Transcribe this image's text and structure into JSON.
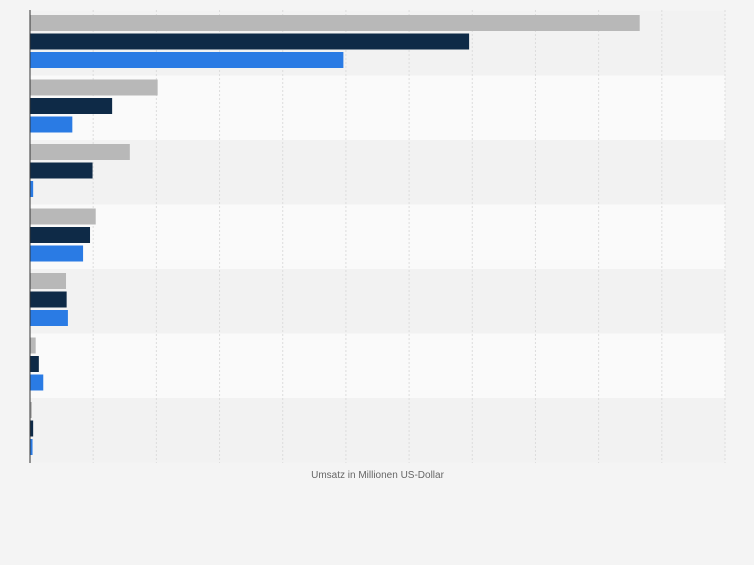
{
  "chart_data": {
    "type": "bar",
    "orientation": "horizontal",
    "title": "",
    "xlabel": "Umsatz in Millionen US-Dollar",
    "ylabel": "",
    "categories": [
      "",
      "",
      "",
      "",
      "",
      "",
      ""
    ],
    "series": [
      {
        "values": [
          9.65,
          2.02,
          1.58,
          1.04,
          0.57,
          0.09,
          0.03
        ],
        "color": "#b8b8b8"
      },
      {
        "values": [
          6.95,
          1.3,
          0.99,
          0.95,
          0.58,
          0.14,
          0.05
        ],
        "color": "#0e2a47"
      },
      {
        "values": [
          4.96,
          0.67,
          0.05,
          0.84,
          0.6,
          0.21,
          0.04
        ],
        "color": "#2a7be4"
      }
    ],
    "xlim": [
      0,
      11
    ],
    "grid": true,
    "legend": "none",
    "colors": {
      "background": "#f4f4f4",
      "band_light": "#fafafa",
      "band_dark": "#f2f2f2",
      "gridline": "#dcdcdc",
      "axis": "#333333",
      "label": "#666666"
    }
  }
}
